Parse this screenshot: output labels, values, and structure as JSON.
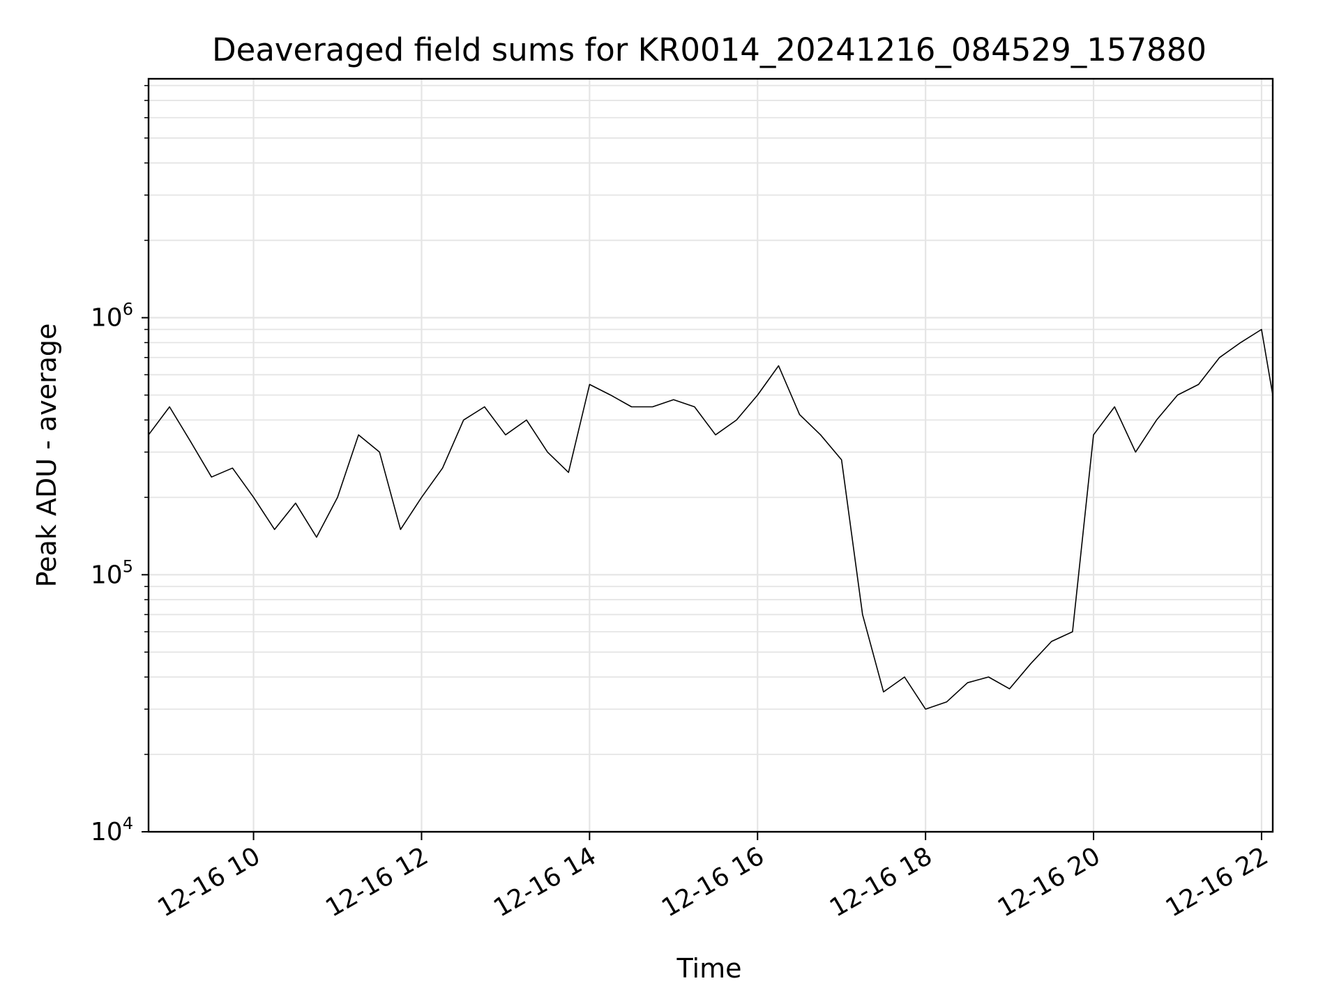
{
  "chart_data": {
    "type": "line",
    "title": "Deaveraged field sums for KR0014_20241216_084529_157880",
    "xlabel": "Time",
    "ylabel": "Peak ADU - average",
    "x_ticks": [
      "12-16 10",
      "12-16 12",
      "12-16 14",
      "12-16 16",
      "12-16 18",
      "12-16 20",
      "12-16 22"
    ],
    "y_ticks": [
      {
        "base": "10",
        "exp": "4",
        "value": 10000
      },
      {
        "base": "10",
        "exp": "5",
        "value": 100000
      },
      {
        "base": "10",
        "exp": "6",
        "value": 1000000
      }
    ],
    "xlim": [
      "2024-12-16T08:45",
      "2024-12-16T22:08"
    ],
    "ylim": [
      10000,
      8500000
    ],
    "y_scale": "log",
    "grid": true,
    "line_color": "#000000",
    "grid_color": "#e5e5e5",
    "series": [
      {
        "x": [
          "2024-12-16T08:45",
          "2024-12-16T09:00",
          "2024-12-16T09:15",
          "2024-12-16T09:30",
          "2024-12-16T09:45",
          "2024-12-16T10:00",
          "2024-12-16T10:15",
          "2024-12-16T10:30",
          "2024-12-16T10:45",
          "2024-12-16T11:00",
          "2024-12-16T11:15",
          "2024-12-16T11:30",
          "2024-12-16T11:45",
          "2024-12-16T12:00",
          "2024-12-16T12:15",
          "2024-12-16T12:30",
          "2024-12-16T12:45",
          "2024-12-16T13:00",
          "2024-12-16T13:15",
          "2024-12-16T13:30",
          "2024-12-16T13:45",
          "2024-12-16T14:00",
          "2024-12-16T14:15",
          "2024-12-16T14:30",
          "2024-12-16T14:45",
          "2024-12-16T15:00",
          "2024-12-16T15:15",
          "2024-12-16T15:30",
          "2024-12-16T15:45",
          "2024-12-16T16:00",
          "2024-12-16T16:15",
          "2024-12-16T16:30",
          "2024-12-16T16:45",
          "2024-12-16T17:00",
          "2024-12-16T17:15",
          "2024-12-16T17:30",
          "2024-12-16T17:45",
          "2024-12-16T18:00",
          "2024-12-16T18:15",
          "2024-12-16T18:30",
          "2024-12-16T18:45",
          "2024-12-16T19:00",
          "2024-12-16T19:15",
          "2024-12-16T19:30",
          "2024-12-16T19:45",
          "2024-12-16T20:00",
          "2024-12-16T20:15",
          "2024-12-16T20:30",
          "2024-12-16T20:45",
          "2024-12-16T21:00",
          "2024-12-16T21:15",
          "2024-12-16T21:30",
          "2024-12-16T21:45",
          "2024-12-16T22:00",
          "2024-12-16T22:08"
        ],
        "values": [
          350000,
          450000,
          330000,
          240000,
          260000,
          200000,
          150000,
          190000,
          140000,
          200000,
          350000,
          300000,
          150000,
          200000,
          260000,
          400000,
          450000,
          350000,
          400000,
          300000,
          250000,
          550000,
          500000,
          450000,
          450000,
          480000,
          450000,
          350000,
          400000,
          500000,
          650000,
          420000,
          350000,
          280000,
          70000,
          35000,
          40000,
          30000,
          32000,
          38000,
          40000,
          36000,
          45000,
          55000,
          60000,
          350000,
          450000,
          300000,
          400000,
          500000,
          550000,
          700000,
          800000,
          900000,
          500000
        ]
      }
    ]
  }
}
